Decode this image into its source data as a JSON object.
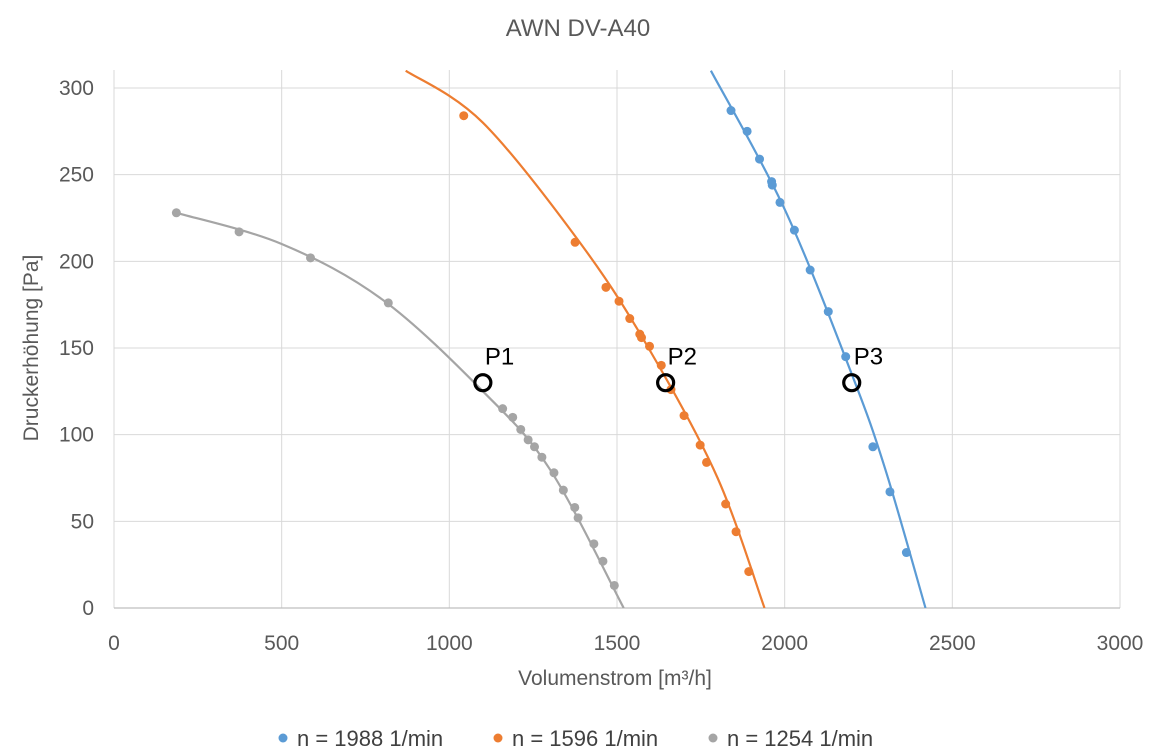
{
  "chart_data": {
    "type": "scatter",
    "title": "AWN DV-A40",
    "xlabel": "Volumenstrom [m³/h]",
    "ylabel": "Druckerhöhung [Pa]",
    "xlim": [
      0,
      3000
    ],
    "ylim": [
      0,
      300
    ],
    "xticks": [
      0,
      500,
      1000,
      1500,
      2000,
      2500,
      3000
    ],
    "yticks": [
      0,
      50,
      100,
      150,
      200,
      250,
      300
    ],
    "grid": true,
    "legend_position": "bottom",
    "series": [
      {
        "name": "n = 1988 1/min",
        "color": "#5B9BD5",
        "points": [
          [
            1840,
            287
          ],
          [
            1888,
            275
          ],
          [
            1925,
            259
          ],
          [
            1961,
            246
          ],
          [
            1963,
            244
          ],
          [
            1986,
            234
          ],
          [
            2029,
            218
          ],
          [
            2076,
            195
          ],
          [
            2130,
            171
          ],
          [
            2182,
            145
          ],
          [
            2263,
            93
          ],
          [
            2314,
            67
          ],
          [
            2363,
            32
          ]
        ],
        "trend": [
          [
            1780,
            310
          ],
          [
            2000,
            230
          ],
          [
            2200,
            135
          ],
          [
            2300,
            80
          ],
          [
            2420,
            0
          ]
        ]
      },
      {
        "name": "n = 1596 1/min",
        "color": "#ED7D31",
        "points": [
          [
            1043,
            284
          ],
          [
            1375,
            211
          ],
          [
            1467,
            185
          ],
          [
            1506,
            177
          ],
          [
            1538,
            167
          ],
          [
            1568,
            158
          ],
          [
            1573,
            156
          ],
          [
            1597,
            151
          ],
          [
            1632,
            140
          ],
          [
            1661,
            126
          ],
          [
            1700,
            111
          ],
          [
            1748,
            94
          ],
          [
            1767,
            84
          ],
          [
            1824,
            60
          ],
          [
            1855,
            44
          ],
          [
            1893,
            21
          ]
        ],
        "trend": [
          [
            870,
            310
          ],
          [
            1100,
            280
          ],
          [
            1400,
            208
          ],
          [
            1600,
            148
          ],
          [
            1800,
            75
          ],
          [
            1940,
            0
          ]
        ]
      },
      {
        "name": "n = 1254 1/min",
        "color": "#A5A5A5",
        "points": [
          [
            186,
            228
          ],
          [
            373,
            217
          ],
          [
            586,
            202
          ],
          [
            818,
            176
          ],
          [
            1159,
            115
          ],
          [
            1189,
            110
          ],
          [
            1213,
            103
          ],
          [
            1235,
            97
          ],
          [
            1254,
            93
          ],
          [
            1276,
            87
          ],
          [
            1312,
            78
          ],
          [
            1340,
            68
          ],
          [
            1374,
            58
          ],
          [
            1384,
            52
          ],
          [
            1431,
            37
          ],
          [
            1458,
            27
          ],
          [
            1492,
            13
          ]
        ],
        "trend": [
          [
            186,
            228
          ],
          [
            500,
            210
          ],
          [
            800,
            178
          ],
          [
            1100,
            125
          ],
          [
            1300,
            80
          ],
          [
            1520,
            0
          ]
        ]
      }
    ],
    "annotations": [
      {
        "label": "P1",
        "x": 1100,
        "y": 130
      },
      {
        "label": "P2",
        "x": 1645,
        "y": 130
      },
      {
        "label": "P3",
        "x": 2200,
        "y": 130
      }
    ]
  }
}
